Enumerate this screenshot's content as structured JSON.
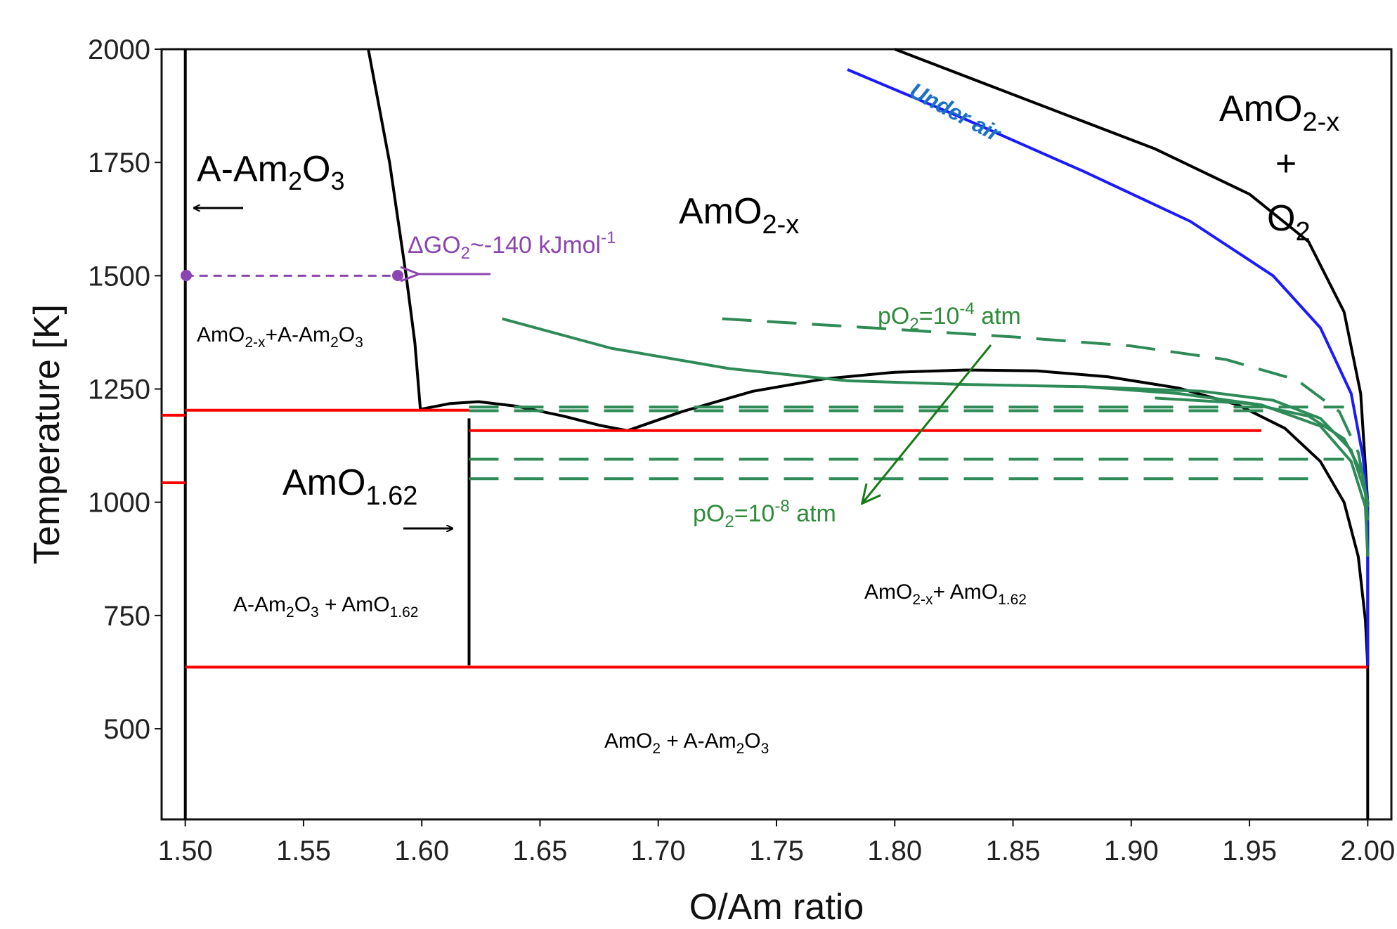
{
  "chart_data": {
    "type": "line",
    "title": "",
    "xlabel": "O/Am ratio",
    "ylabel": "Temperature [K]",
    "xlim": [
      1.49,
      2.01
    ],
    "ylim": [
      300,
      2000
    ],
    "grid": false,
    "x_ticks": [
      "1.50",
      "1.55",
      "1.60",
      "1.65",
      "1.70",
      "1.75",
      "1.80",
      "1.85",
      "1.90",
      "1.95",
      "2.00"
    ],
    "y_ticks": [
      "500",
      "750",
      "1000",
      "1250",
      "1500",
      "1750",
      "2000"
    ],
    "colors": {
      "phase_boundary": "#000000",
      "invariant": "#ff0000",
      "under_air": "#1a1aff",
      "iso_po2": "#2e8b57",
      "dg_marker": "#8b45b0"
    },
    "series": [
      {
        "style": "black",
        "points": [
          [
            1.5,
            300
          ],
          [
            1.5,
            2000
          ]
        ]
      },
      {
        "style": "black",
        "points": [
          [
            1.5774,
            2000
          ],
          [
            1.5864,
            1750
          ],
          [
            1.5934,
            1500
          ],
          [
            1.5971,
            1352
          ],
          [
            1.5994,
            1205
          ]
        ]
      },
      {
        "style": "black",
        "points": [
          [
            1.62,
            640
          ],
          [
            1.62,
            1185
          ]
        ]
      },
      {
        "style": "black",
        "points": [
          [
            1.5994,
            1205
          ],
          [
            1.612,
            1218
          ],
          [
            1.624,
            1222
          ],
          [
            1.64,
            1212
          ],
          [
            1.66,
            1190
          ],
          [
            1.675,
            1170
          ],
          [
            1.687,
            1158
          ]
        ]
      },
      {
        "style": "black",
        "points": [
          [
            1.687,
            1158
          ],
          [
            1.71,
            1200
          ],
          [
            1.74,
            1245
          ],
          [
            1.77,
            1272
          ],
          [
            1.8,
            1287
          ],
          [
            1.83,
            1292
          ],
          [
            1.86,
            1290
          ],
          [
            1.89,
            1277
          ],
          [
            1.92,
            1252
          ],
          [
            1.945,
            1215
          ],
          [
            1.965,
            1163
          ],
          [
            1.98,
            1090
          ],
          [
            1.99,
            1000
          ],
          [
            1.996,
            880
          ],
          [
            1.999,
            740
          ],
          [
            2.0,
            640
          ],
          [
            2.0,
            300
          ]
        ]
      },
      {
        "style": "black",
        "points": [
          [
            1.8,
            2000
          ],
          [
            1.86,
            1880
          ],
          [
            1.91,
            1780
          ],
          [
            1.95,
            1680
          ],
          [
            1.975,
            1575
          ],
          [
            1.99,
            1420
          ],
          [
            1.997,
            1240
          ],
          [
            2.0,
            1000
          ],
          [
            2.0,
            640
          ]
        ]
      },
      {
        "style": "blue",
        "points": [
          [
            1.78,
            1955
          ],
          [
            1.83,
            1845
          ],
          [
            1.88,
            1730
          ],
          [
            1.925,
            1620
          ],
          [
            1.96,
            1500
          ],
          [
            1.98,
            1385
          ],
          [
            1.993,
            1240
          ],
          [
            1.998,
            1100
          ],
          [
            2.0,
            1000
          ],
          [
            2.0,
            640
          ]
        ]
      },
      {
        "style": "green-solid",
        "points": [
          [
            1.634,
            1405
          ],
          [
            1.68,
            1340
          ],
          [
            1.73,
            1295
          ],
          [
            1.78,
            1268
          ],
          [
            1.83,
            1260
          ],
          [
            1.88,
            1255
          ],
          [
            1.92,
            1240
          ],
          [
            1.955,
            1215
          ],
          [
            1.98,
            1168
          ],
          [
            1.993,
            1090
          ],
          [
            1.999,
            990
          ],
          [
            2.0,
            880
          ]
        ]
      },
      {
        "style": "green-dash",
        "points": [
          [
            1.727,
            1405
          ],
          [
            1.79,
            1385
          ],
          [
            1.85,
            1365
          ],
          [
            1.9,
            1345
          ],
          [
            1.94,
            1315
          ],
          [
            1.97,
            1270
          ],
          [
            1.988,
            1200
          ],
          [
            1.996,
            1110
          ],
          [
            2.0,
            1000
          ]
        ]
      },
      {
        "style": "green-solid",
        "points": [
          [
            1.88,
            1255
          ],
          [
            1.93,
            1245
          ],
          [
            1.96,
            1225
          ],
          [
            1.98,
            1185
          ],
          [
            1.993,
            1115
          ],
          [
            1.999,
            1020
          ],
          [
            2.0,
            960
          ]
        ]
      },
      {
        "style": "green-solid",
        "points": [
          [
            1.91,
            1230
          ],
          [
            1.95,
            1218
          ],
          [
            1.975,
            1190
          ],
          [
            1.99,
            1140
          ],
          [
            1.998,
            1060
          ],
          [
            2.0,
            990
          ]
        ]
      },
      {
        "style": "green-dash",
        "points": [
          [
            1.62,
            1210
          ],
          [
            1.99,
            1210
          ]
        ]
      },
      {
        "style": "green-dash",
        "points": [
          [
            1.62,
            1202
          ],
          [
            1.965,
            1202
          ]
        ]
      },
      {
        "style": "green-dash",
        "points": [
          [
            1.62,
            1095
          ],
          [
            1.99,
            1095
          ]
        ]
      },
      {
        "style": "green-dash",
        "points": [
          [
            1.62,
            1052
          ],
          [
            1.98,
            1052
          ]
        ]
      },
      {
        "style": "red",
        "points": [
          [
            1.49,
            1192
          ],
          [
            1.5,
            1192
          ]
        ]
      },
      {
        "style": "red",
        "points": [
          [
            1.5,
            1203
          ],
          [
            1.62,
            1203
          ]
        ]
      },
      {
        "style": "red",
        "points": [
          [
            1.49,
            1043
          ],
          [
            1.5,
            1043
          ]
        ]
      },
      {
        "style": "red",
        "points": [
          [
            1.62,
            1158
          ],
          [
            1.955,
            1158
          ]
        ]
      },
      {
        "style": "red",
        "points": [
          [
            1.5,
            636
          ],
          [
            2.0,
            636
          ]
        ]
      },
      {
        "style": "purple-dash",
        "points": [
          [
            1.5,
            1500
          ],
          [
            1.59,
            1500
          ]
        ]
      }
    ],
    "annotations": {
      "a_am2o3": "A-Am",
      "amo2x_center": "AmO",
      "amo162": "AmO",
      "amo2x_o2_a": "AmO",
      "plus": "+",
      "o2": "O",
      "under_air": "Under air",
      "dg_text": "ΔGO",
      "dg_value": "~-140 kJmol",
      "po2_high": "pO",
      "po2_low": "pO",
      "region_amo2x_aam2o3": "AmO",
      "region_aam2o3_amo162": "A-Am",
      "region_amo2x_amo162": "AmO",
      "region_amo2_aam2o3": "AmO"
    },
    "sub_sup": {
      "sub_2": "2",
      "sub_3": "3",
      "sub_2x": "2-x",
      "sub_162": "1.62",
      "sup_m1": "-1",
      "sup_m4": "-4",
      "sup_m8": "-8",
      "eq_10": "=10",
      "atm": " atm",
      "plus_aam": "+A-Am",
      "spaced_plus_amo": " + AmO",
      "spaced_plus_aam": " + A-Am",
      "x_plus_amo": "+ AmO",
      "amo2x_plus": "AmO"
    }
  }
}
